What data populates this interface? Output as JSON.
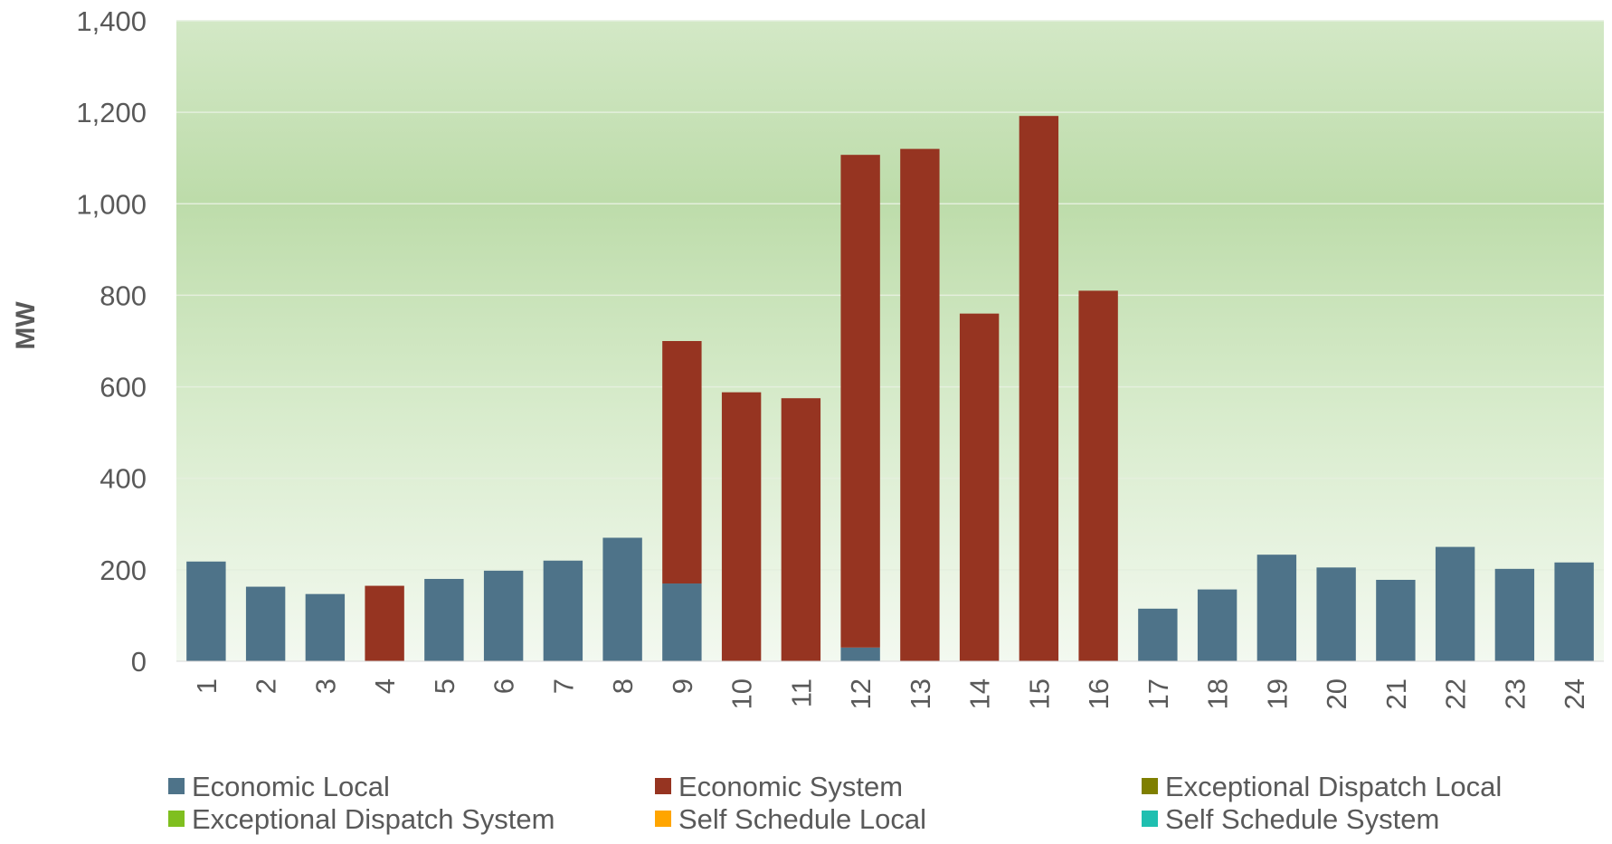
{
  "chart_data": {
    "type": "bar",
    "stacked": true,
    "title": "",
    "xlabel": "",
    "ylabel": "MW",
    "ylim": [
      0,
      1400
    ],
    "yticks": [
      "0",
      "200",
      "400",
      "600",
      "800",
      "1,000",
      "1,200",
      "1,400"
    ],
    "ytick_values": [
      0,
      200,
      400,
      600,
      800,
      1000,
      1200,
      1400
    ],
    "categories": [
      "1",
      "2",
      "3",
      "4",
      "5",
      "6",
      "7",
      "8",
      "9",
      "10",
      "11",
      "12",
      "13",
      "14",
      "15",
      "16",
      "17",
      "18",
      "19",
      "20",
      "21",
      "22",
      "23",
      "24"
    ],
    "grid": true,
    "legend_position": "bottom",
    "plot_background": "green-gradient",
    "series": [
      {
        "name": "Economic Local",
        "color": "#4e7389",
        "values": [
          218,
          163,
          147,
          0,
          180,
          198,
          220,
          270,
          170,
          0,
          0,
          30,
          0,
          0,
          0,
          0,
          115,
          157,
          233,
          205,
          178,
          250,
          202,
          216
        ]
      },
      {
        "name": "Economic System",
        "color": "#963421",
        "values": [
          0,
          0,
          0,
          165,
          0,
          0,
          0,
          0,
          530,
          588,
          575,
          1077,
          1120,
          760,
          1192,
          810,
          0,
          0,
          0,
          0,
          0,
          0,
          0,
          0
        ]
      },
      {
        "name": "Exceptional Dispatch Local",
        "color": "#7f7f00",
        "values": [
          0,
          0,
          0,
          0,
          0,
          0,
          0,
          0,
          0,
          0,
          0,
          0,
          0,
          0,
          0,
          0,
          0,
          0,
          0,
          0,
          0,
          0,
          0,
          0
        ]
      },
      {
        "name": "Exceptional Dispatch System",
        "color": "#7fbf1f",
        "values": [
          0,
          0,
          0,
          0,
          0,
          0,
          0,
          0,
          0,
          0,
          0,
          0,
          0,
          0,
          0,
          0,
          0,
          0,
          0,
          0,
          0,
          0,
          0,
          0
        ]
      },
      {
        "name": "Self Schedule Local",
        "color": "#ffa500",
        "values": [
          0,
          0,
          0,
          0,
          0,
          0,
          0,
          0,
          0,
          0,
          0,
          0,
          0,
          0,
          0,
          0,
          0,
          0,
          0,
          0,
          0,
          0,
          0,
          0
        ]
      },
      {
        "name": "Self Schedule System",
        "color": "#1fbfb0",
        "values": [
          0,
          0,
          0,
          0,
          0,
          0,
          0,
          0,
          0,
          0,
          0,
          0,
          0,
          0,
          0,
          0,
          0,
          0,
          0,
          0,
          0,
          0,
          0,
          0
        ]
      }
    ]
  }
}
